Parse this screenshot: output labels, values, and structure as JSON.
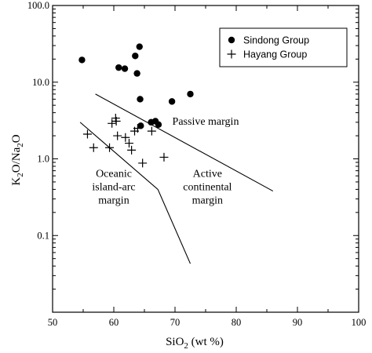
{
  "chart_data": {
    "type": "scatter",
    "xlabel": "SiO₂ (wt %)",
    "xlabel_main": "SiO",
    "xlabel_sub": "2",
    "xlabel_rest": " (wt %)",
    "ylabel_parts": [
      "K",
      "2",
      "O/Na",
      "2",
      "O"
    ],
    "xlim": [
      50,
      100
    ],
    "ylim": [
      0.01,
      100
    ],
    "yscale": "log",
    "x_ticks": [
      "50",
      "60",
      "70",
      "80",
      "90",
      "100"
    ],
    "y_ticks": [
      "0.1",
      "1.0",
      "10.0",
      "100.0"
    ],
    "legend_position": "top-right",
    "series": [
      {
        "name": "Sindong Group",
        "marker": "filled-circle",
        "points": [
          [
            54.8,
            19.5
          ],
          [
            60.8,
            15.5
          ],
          [
            61.8,
            15.0
          ],
          [
            63.5,
            22.0
          ],
          [
            64.2,
            29.0
          ],
          [
            63.8,
            13.0
          ],
          [
            64.3,
            6.0
          ],
          [
            64.4,
            2.7
          ],
          [
            66.1,
            3.0
          ],
          [
            66.8,
            3.1
          ],
          [
            67.3,
            2.8
          ],
          [
            69.5,
            5.6
          ],
          [
            72.5,
            7.0
          ]
        ]
      },
      {
        "name": "Hayang Group",
        "marker": "plus",
        "points": [
          [
            55.7,
            2.1
          ],
          [
            56.7,
            1.4
          ],
          [
            59.3,
            1.4
          ],
          [
            59.7,
            2.9
          ],
          [
            60.3,
            3.4
          ],
          [
            60.4,
            3.1
          ],
          [
            60.6,
            2.0
          ],
          [
            61.9,
            1.9
          ],
          [
            62.5,
            1.6
          ],
          [
            62.9,
            1.3
          ],
          [
            63.4,
            2.3
          ],
          [
            63.9,
            2.5
          ],
          [
            64.7,
            0.88
          ],
          [
            66.2,
            2.3
          ],
          [
            68.2,
            1.05
          ]
        ]
      }
    ],
    "boundaries": [
      {
        "from": [
          57.0,
          7.0
        ],
        "to": [
          86.0,
          0.38
        ]
      },
      {
        "from": [
          54.5,
          3.0
        ],
        "to": [
          67.2,
          0.4
        ],
        "then": [
          72.5,
          0.043
        ]
      }
    ],
    "field_labels": [
      {
        "name": "passive-margin-label",
        "lines": [
          "Passive margin"
        ],
        "at": [
          75.0,
          2.8
        ]
      },
      {
        "name": "active-continental-margin-label",
        "lines": [
          "Active",
          "continental",
          "margin"
        ],
        "at": [
          75.3,
          0.58
        ]
      },
      {
        "name": "oceanic-island-arc-margin-label",
        "lines": [
          "Oceanic",
          "island-arc",
          "margin"
        ],
        "at": [
          60.0,
          0.58
        ]
      }
    ]
  }
}
